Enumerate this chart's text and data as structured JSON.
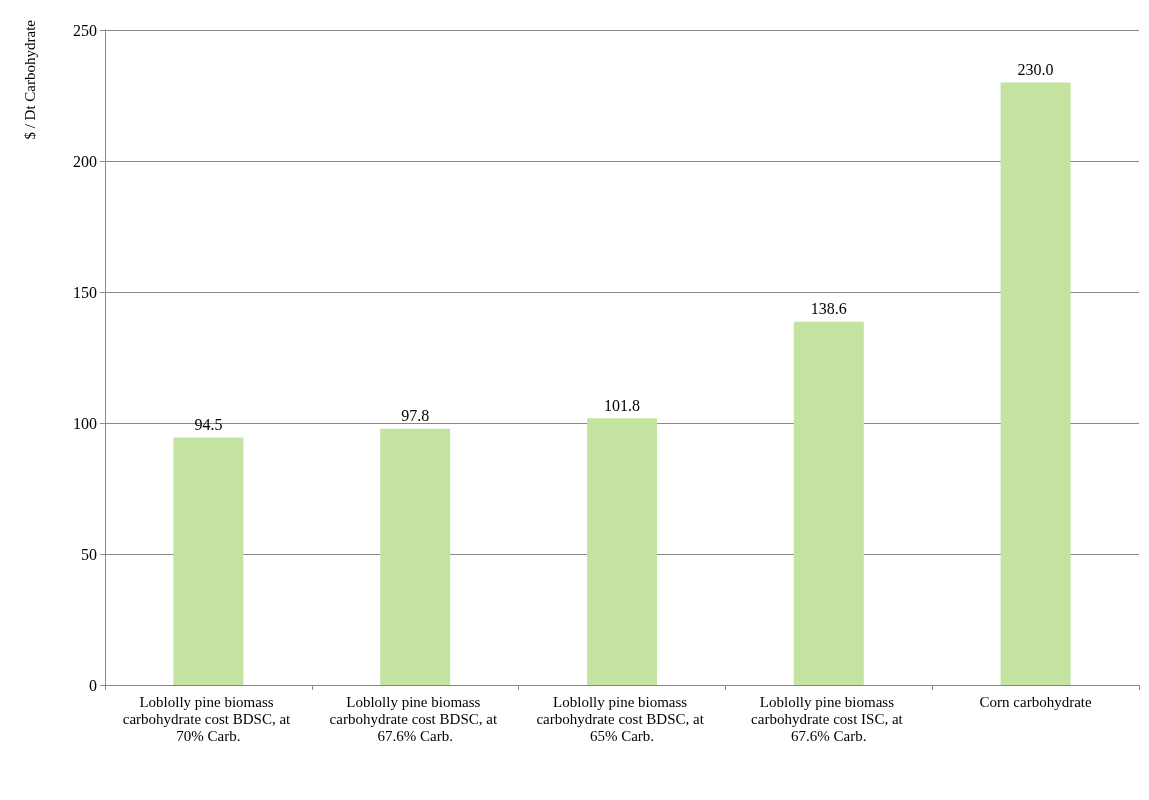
{
  "chart_data": {
    "type": "bar",
    "ylabel": "$ / Dt Carbohydrate",
    "categories": [
      "Loblolly pine biomass carbohydrate cost BDSC, at 70% Carb.",
      "Loblolly pine biomass carbohydrate cost BDSC, at 67.6% Carb.",
      "Loblolly pine biomass carbohydrate cost BDSC, at 65% Carb.",
      "Loblolly pine biomass carbohydrate cost ISC, at 67.6% Carb.",
      "Corn carbohydrate"
    ],
    "values": [
      94.5,
      97.8,
      101.8,
      138.6,
      230.0
    ],
    "value_labels": [
      "94.5",
      "97.8",
      "101.8",
      "138.6",
      "230.0"
    ],
    "color": "#c5e3a0",
    "ylim": [
      0,
      250
    ],
    "yticks": [
      0,
      50,
      100,
      150,
      200,
      250
    ],
    "grid": "y"
  }
}
